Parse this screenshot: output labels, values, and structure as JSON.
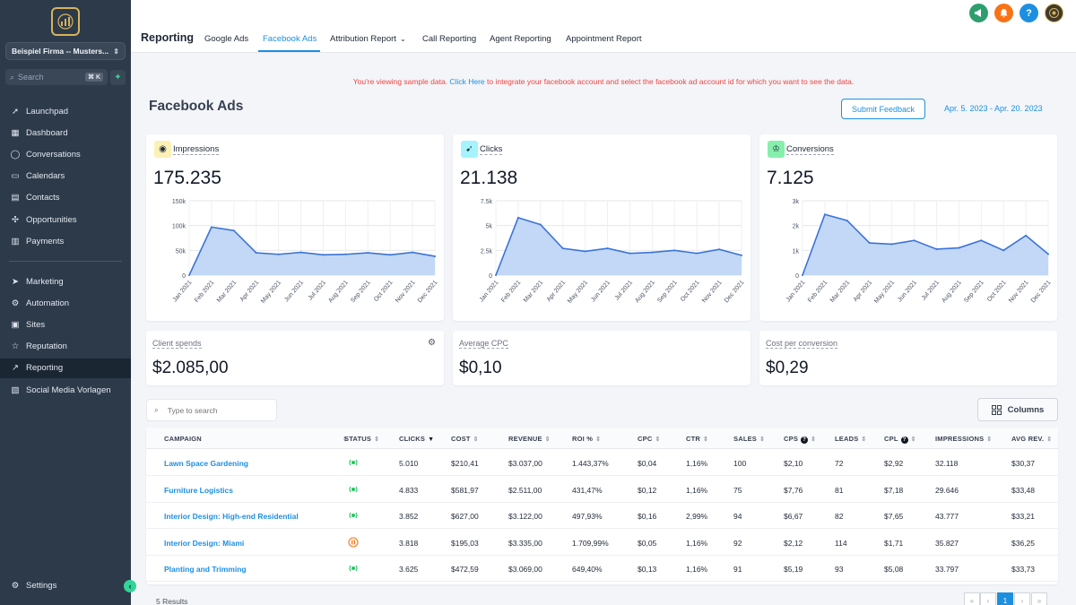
{
  "sidebar": {
    "company": "Beispiel Firma -- Musters...",
    "search_placeholder": "Search",
    "search_shortcut": "⌘ K",
    "nav_top": [
      {
        "label": "Launchpad",
        "icon": "rocket-icon"
      },
      {
        "label": "Dashboard",
        "icon": "grid-icon"
      },
      {
        "label": "Conversations",
        "icon": "chat-icon"
      },
      {
        "label": "Calendars",
        "icon": "calendar-icon"
      },
      {
        "label": "Contacts",
        "icon": "contacts-icon"
      },
      {
        "label": "Opportunities",
        "icon": "opportunities-icon"
      },
      {
        "label": "Payments",
        "icon": "payments-icon"
      }
    ],
    "nav_bottom": [
      {
        "label": "Marketing",
        "icon": "send-icon"
      },
      {
        "label": "Automation",
        "icon": "automation-icon"
      },
      {
        "label": "Sites",
        "icon": "sites-icon"
      },
      {
        "label": "Reputation",
        "icon": "star-icon"
      },
      {
        "label": "Reporting",
        "icon": "trend-icon"
      },
      {
        "label": "Social Media Vorlagen",
        "icon": "media-icon"
      }
    ],
    "settings": "Settings"
  },
  "topbar": {
    "title": "Reporting",
    "tabs": [
      "Google Ads",
      "Facebook Ads",
      "Attribution Report",
      "Call Reporting",
      "Agent Reporting",
      "Appointment Report"
    ],
    "active_tab": "Facebook Ads",
    "icon_colors": {
      "megaphone": "#2f9e6f",
      "bell": "#f97316",
      "help": "#1d8fe0"
    }
  },
  "notice": {
    "prefix": "You're viewing sample data.",
    "link": "Click Here",
    "suffix": "to integrate your facebook account and select the facebook ad account id for which you want to see the data."
  },
  "page": {
    "title": "Facebook Ads",
    "feedback_button": "Submit Feedback",
    "date_range": "Apr. 5. 2023 - Apr. 20. 2023"
  },
  "metrics": [
    {
      "label": "Impressions",
      "value": "175.235",
      "icon": "eye-icon",
      "icon_bg": "#fdf0b5"
    },
    {
      "label": "Clicks",
      "value": "21.138",
      "icon": "cursor-icon",
      "icon_bg": "#a5f3fc"
    },
    {
      "label": "Conversions",
      "value": "7.125",
      "icon": "trophy-icon",
      "icon_bg": "#86efac"
    }
  ],
  "chart_data": [
    {
      "type": "area",
      "title": "Impressions",
      "categories": [
        "Jan 2021",
        "Feb 2021",
        "Mar 2021",
        "Apr 2021",
        "May 2021",
        "Jun 2021",
        "Jul 2021",
        "Aug 2021",
        "Sep 2021",
        "Oct 2021",
        "Nov 2021",
        "Dec 2021"
      ],
      "values": [
        0,
        97000,
        90000,
        45000,
        42000,
        46000,
        41000,
        42000,
        45000,
        41000,
        46000,
        38000
      ],
      "yticks": [
        "0",
        "50k",
        "100k",
        "150k"
      ],
      "ylim": [
        0,
        150000
      ],
      "grid": true
    },
    {
      "type": "area",
      "title": "Clicks",
      "categories": [
        "Jan 2021",
        "Feb 2021",
        "Mar 2021",
        "Apr 2021",
        "May 2021",
        "Jun 2021",
        "Jul 2021",
        "Aug 2021",
        "Sep 2021",
        "Oct 2021",
        "Nov 2021",
        "Dec 2021"
      ],
      "values": [
        0,
        5800,
        5100,
        2700,
        2400,
        2700,
        2200,
        2300,
        2500,
        2200,
        2600,
        2000
      ],
      "yticks": [
        "0",
        "2.5k",
        "5k",
        "7.5k"
      ],
      "ylim": [
        0,
        7500
      ],
      "grid": true
    },
    {
      "type": "area",
      "title": "Conversions",
      "categories": [
        "Jan 2021",
        "Feb 2021",
        "Mar 2021",
        "Apr 2021",
        "May 2021",
        "Jun 2021",
        "Jul 2021",
        "Aug 2021",
        "Sep 2021",
        "Oct 2021",
        "Nov 2021",
        "Dec 2021"
      ],
      "values": [
        0,
        2450,
        2200,
        1300,
        1250,
        1400,
        1050,
        1100,
        1400,
        1000,
        1600,
        850
      ],
      "yticks": [
        "0",
        "1k",
        "2k",
        "3k"
      ],
      "ylim": [
        0,
        3000
      ],
      "grid": true
    }
  ],
  "small_cards": [
    {
      "label": "Client spends",
      "value": "$2.085,00"
    },
    {
      "label": "Average CPC",
      "value": "$0,10"
    },
    {
      "label": "Cost per conversion",
      "value": "$0,29"
    }
  ],
  "table": {
    "search_placeholder": "Type to search",
    "columns_button": "Columns",
    "headers": [
      "CAMPAIGN",
      "STATUS",
      "CLICKS",
      "COST",
      "REVENUE",
      "ROI %",
      "CPC",
      "CTR",
      "SALES",
      "CPS",
      "LEADS",
      "CPL",
      "IMPRESSIONS",
      "AVG REV."
    ],
    "rows": [
      {
        "campaign": "Lawn Space Gardening",
        "status": "active",
        "clicks": "5.010",
        "cost": "$210,41",
        "revenue": "$3.037,00",
        "roi": "1.443,37%",
        "cpc": "$0,04",
        "ctr": "1,16%",
        "sales": "100",
        "cps": "$2,10",
        "leads": "72",
        "cpl": "$2,92",
        "impressions": "32.118",
        "avg_rev": "$30,37"
      },
      {
        "campaign": "Furniture Logistics",
        "status": "active",
        "clicks": "4.833",
        "cost": "$581,97",
        "revenue": "$2.511,00",
        "roi": "431,47%",
        "cpc": "$0,12",
        "ctr": "1,16%",
        "sales": "75",
        "cps": "$7,76",
        "leads": "81",
        "cpl": "$7,18",
        "impressions": "29.646",
        "avg_rev": "$33,48"
      },
      {
        "campaign": "Interior Design: High-end Residential",
        "status": "active",
        "clicks": "3.852",
        "cost": "$627,00",
        "revenue": "$3.122,00",
        "roi": "497,93%",
        "cpc": "$0,16",
        "ctr": "2,99%",
        "sales": "94",
        "cps": "$6,67",
        "leads": "82",
        "cpl": "$7,65",
        "impressions": "43.777",
        "avg_rev": "$33,21"
      },
      {
        "campaign": "Interior Design: Miami",
        "status": "paused",
        "clicks": "3.818",
        "cost": "$195,03",
        "revenue": "$3.335,00",
        "roi": "1.709,99%",
        "cpc": "$0,05",
        "ctr": "1,16%",
        "sales": "92",
        "cps": "$2,12",
        "leads": "114",
        "cpl": "$1,71",
        "impressions": "35.827",
        "avg_rev": "$36,25"
      },
      {
        "campaign": "Planting and Trimming",
        "status": "active",
        "clicks": "3.625",
        "cost": "$472,59",
        "revenue": "$3.069,00",
        "roi": "649,40%",
        "cpc": "$0,13",
        "ctr": "1,16%",
        "sales": "91",
        "cps": "$5,19",
        "leads": "93",
        "cpl": "$5,08",
        "impressions": "33.797",
        "avg_rev": "$33,73"
      }
    ],
    "results": "5 Results",
    "current_page": "1"
  }
}
